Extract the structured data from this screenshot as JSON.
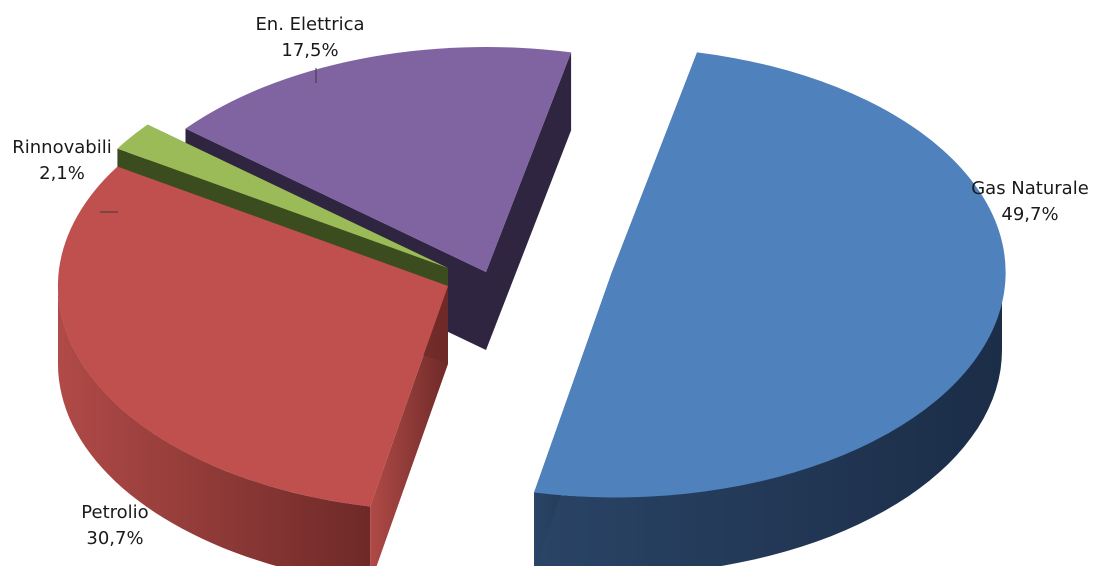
{
  "chart_data": {
    "type": "pie",
    "style": "3d-exploded",
    "title": "",
    "slices": [
      {
        "label": "Gas Naturale",
        "value": 49.7,
        "value_label": "49,7%",
        "color": "#4F81BD",
        "exploded": true
      },
      {
        "label": "Petrolio",
        "value": 30.7,
        "value_label": "30,7%",
        "color": "#C0504D",
        "exploded": true
      },
      {
        "label": "Rinnovabili",
        "value": 2.1,
        "value_label": "2,1%",
        "color": "#9BBB59",
        "exploded": true
      },
      {
        "label": "En. Elettrica",
        "value": 17.5,
        "value_label": "17,5%",
        "color": "#8064A2",
        "exploded": true
      }
    ],
    "legend": "none",
    "labels_position": "outside"
  }
}
